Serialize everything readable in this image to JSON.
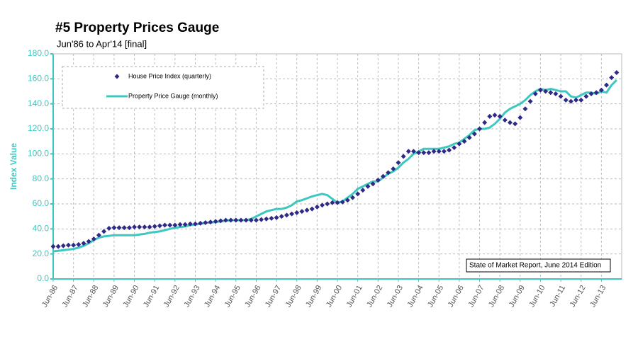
{
  "chart_data": {
    "type": "line",
    "title": "#5 Property Prices Gauge",
    "subtitle": "Jun'86 to Apr'14 [final]",
    "y_label": "Index Value",
    "annotation": "State of Market Report, June 2014 Edition",
    "x": [
      "Jun-86",
      "Sep-86",
      "Dec-86",
      "Mar-87",
      "Jun-87",
      "Sep-87",
      "Dec-87",
      "Mar-88",
      "Jun-88",
      "Sep-88",
      "Dec-88",
      "Mar-89",
      "Jun-89",
      "Sep-89",
      "Dec-89",
      "Mar-90",
      "Jun-90",
      "Sep-90",
      "Dec-90",
      "Mar-91",
      "Jun-91",
      "Sep-91",
      "Dec-91",
      "Mar-92",
      "Jun-92",
      "Sep-92",
      "Dec-92",
      "Mar-93",
      "Jun-93",
      "Sep-93",
      "Dec-93",
      "Mar-94",
      "Jun-94",
      "Sep-94",
      "Dec-94",
      "Mar-95",
      "Jun-95",
      "Sep-95",
      "Dec-95",
      "Mar-96",
      "Jun-96",
      "Sep-96",
      "Dec-96",
      "Mar-97",
      "Jun-97",
      "Sep-97",
      "Dec-97",
      "Mar-98",
      "Jun-98",
      "Sep-98",
      "Dec-98",
      "Mar-99",
      "Jun-99",
      "Sep-99",
      "Dec-99",
      "Mar-00",
      "Jun-00",
      "Sep-00",
      "Dec-00",
      "Mar-01",
      "Jun-01",
      "Sep-01",
      "Dec-01",
      "Mar-02",
      "Jun-02",
      "Sep-02",
      "Dec-02",
      "Mar-03",
      "Jun-03",
      "Sep-03",
      "Dec-03",
      "Mar-04",
      "Jun-04",
      "Sep-04",
      "Dec-04",
      "Mar-05",
      "Jun-05",
      "Sep-05",
      "Dec-05",
      "Mar-06",
      "Jun-06",
      "Sep-06",
      "Dec-06",
      "Mar-07",
      "Jun-07",
      "Sep-07",
      "Dec-07",
      "Mar-08",
      "Jun-08",
      "Sep-08",
      "Dec-08",
      "Mar-09",
      "Jun-09",
      "Sep-09",
      "Dec-09",
      "Mar-10",
      "Jun-10",
      "Sep-10",
      "Dec-10",
      "Mar-11",
      "Jun-11",
      "Sep-11",
      "Dec-11",
      "Mar-12",
      "Jun-12",
      "Sep-12",
      "Dec-12",
      "Mar-13",
      "Jun-13",
      "Sep-13",
      "Dec-13",
      "Mar-14"
    ],
    "series": [
      {
        "name": "House Price Index (quarterly)",
        "color": "#2e2a86",
        "marker": "diamond",
        "values": [
          26,
          26,
          26.5,
          27,
          27,
          27.5,
          28.5,
          30,
          32,
          35,
          38,
          40.5,
          41,
          41,
          41,
          41,
          41.5,
          41.5,
          41.5,
          41.5,
          42,
          42.5,
          43,
          43,
          43,
          43.5,
          43.5,
          44,
          44,
          44.5,
          45,
          45.5,
          46,
          46.5,
          47,
          47,
          47,
          47,
          47,
          47,
          47,
          47.5,
          48,
          48.5,
          49,
          50,
          51,
          52,
          53,
          54,
          55,
          56,
          57.5,
          59,
          60,
          61,
          61,
          61.5,
          63,
          65,
          68,
          71,
          74,
          76,
          79,
          82,
          85,
          88,
          93,
          98,
          102,
          102,
          101,
          101,
          101,
          102,
          102,
          102,
          103,
          105,
          108,
          110,
          113,
          116,
          120,
          125,
          130,
          131,
          130,
          127,
          125,
          124,
          129,
          136,
          142,
          148,
          151,
          150,
          149,
          148,
          146,
          143,
          142,
          143,
          143,
          146,
          148,
          149,
          151,
          155,
          161,
          165
        ]
      },
      {
        "name": "Property Price Gauge (monthly)",
        "color": "#3cc8c0",
        "marker": "line",
        "values": [
          22,
          22.5,
          23,
          23.5,
          24,
          25,
          26.5,
          28.5,
          31,
          33,
          34,
          34.5,
          35,
          35,
          35,
          35,
          35,
          35.5,
          36,
          37,
          37.5,
          38,
          39,
          40,
          41,
          41.5,
          42,
          43,
          43.5,
          44,
          45,
          45,
          45.5,
          46,
          46.5,
          47,
          47,
          47,
          47,
          48,
          50,
          52,
          54,
          55,
          56,
          56,
          57,
          59,
          62,
          63,
          64.5,
          66,
          67,
          68,
          67,
          64,
          61,
          62,
          65,
          68,
          72,
          74,
          76,
          78,
          78,
          81,
          84,
          86,
          89,
          93,
          96,
          100,
          102,
          104,
          104,
          104,
          104,
          105,
          106,
          108,
          109,
          112,
          115,
          119,
          120,
          120,
          121,
          124,
          128,
          133,
          136,
          138,
          140,
          143,
          147,
          150,
          152,
          151,
          152,
          151,
          150,
          150,
          146,
          145,
          147,
          149,
          149,
          148,
          150,
          149,
          155,
          159
        ]
      }
    ],
    "xlim": [
      "Jun-86",
      "Jun-14"
    ],
    "xticks": [
      "Jun-86",
      "Jun-87",
      "Jun-88",
      "Jun-89",
      "Jun-90",
      "Jun-91",
      "Jun-92",
      "Jun-93",
      "Jun-94",
      "Jun-95",
      "Jun-96",
      "Jun-97",
      "Jun-98",
      "Jun-99",
      "Jun-00",
      "Jun-01",
      "Jun-02",
      "Jun-03",
      "Jun-04",
      "Jun-05",
      "Jun-06",
      "Jun-07",
      "Jun-08",
      "Jun-09",
      "Jun-10",
      "Jun-11",
      "Jun-12",
      "Jun-13"
    ],
    "ylim": [
      0,
      180
    ],
    "yticks": [
      {
        "value": 0,
        "label": "0.0"
      },
      {
        "value": 20,
        "label": "20.0"
      },
      {
        "value": 40,
        "label": "40.0"
      },
      {
        "value": 60,
        "label": "60.0"
      },
      {
        "value": 80,
        "label": "80.0"
      },
      {
        "value": 100,
        "label": "100.0"
      },
      {
        "value": 120,
        "label": "120.0"
      },
      {
        "value": 140,
        "label": "140.0"
      },
      {
        "value": 160,
        "label": "160.0"
      },
      {
        "value": 180,
        "label": "180.0"
      }
    ],
    "grid": true
  }
}
